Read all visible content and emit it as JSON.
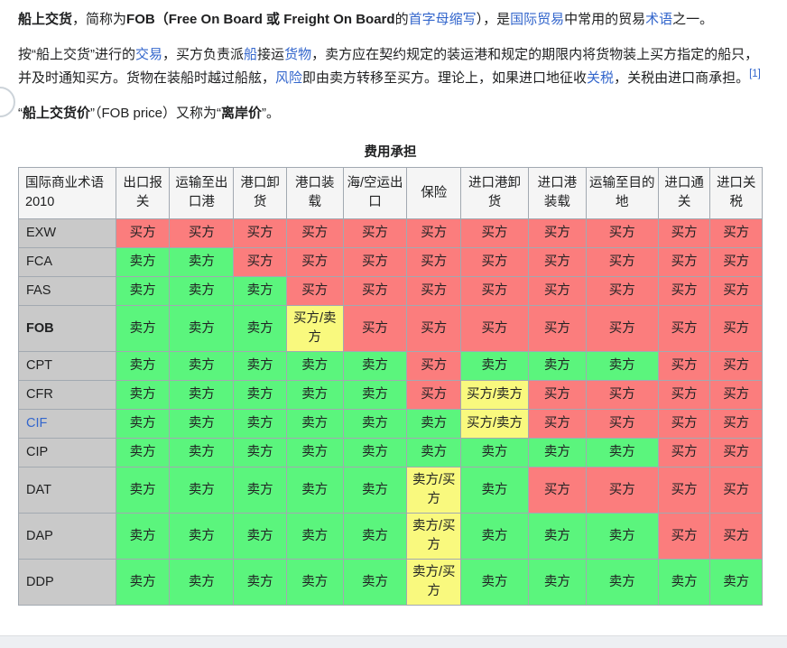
{
  "colors": {
    "buyer_bg": "#fb7d7d",
    "seller_bg": "#5bf57d",
    "shared_bg": "#f9f97e",
    "row_header_bg": "#c9c9c9",
    "column_header_bg": "#f5f5f5",
    "link": "#3366cc",
    "text": "#202122",
    "border": "#a2a9b1"
  },
  "article": {
    "paragraphs": [
      {
        "segments": [
          {
            "text": "船上交货",
            "bold": true
          },
          {
            "text": "，简称为"
          },
          {
            "text": "FOB（Free On Board 或 Freight On Board",
            "bold": true
          },
          {
            "text": "的"
          },
          {
            "text": "首字母缩写",
            "link": true
          },
          {
            "text": "），是"
          },
          {
            "text": "国际贸易",
            "link": true
          },
          {
            "text": "中常用的贸易"
          },
          {
            "text": "术语",
            "link": true
          },
          {
            "text": "之一。"
          }
        ]
      },
      {
        "segments": [
          {
            "text": "按“船上交货”进行的"
          },
          {
            "text": "交易",
            "link": true
          },
          {
            "text": "，买方负责派"
          },
          {
            "text": "船",
            "link": true
          },
          {
            "text": "接运"
          },
          {
            "text": "货物",
            "link": true
          },
          {
            "text": "，卖方应在契约规定的装运港和规定的期限内将货物装上买方指定的船只，并及时通知买方。货物在装船时越过船舷，"
          },
          {
            "text": "风险",
            "link": true
          },
          {
            "text": "即由卖方转移至买方。理论上，如果进口地征收"
          },
          {
            "text": "关税",
            "link": true
          },
          {
            "text": "，关税由进口商承担。"
          },
          {
            "text": "[1]",
            "link": true,
            "sup": true
          }
        ]
      },
      {
        "segments": [
          {
            "text": "“"
          },
          {
            "text": "船上交货价",
            "bold": true
          },
          {
            "text": "”（FOB price）又称为“"
          },
          {
            "text": "离岸价",
            "bold": true
          },
          {
            "text": "”。"
          }
        ]
      }
    ]
  },
  "table": {
    "caption": "费用承担",
    "columns": [
      "国际商业术语 2010",
      "出口报关",
      "运输至出口港",
      "港口卸货",
      "港口装载",
      "海/空运出口",
      "保险",
      "进口港卸货",
      "进口港装载",
      "运输至目的地",
      "进口通关",
      "进口关税"
    ],
    "cell_types": {
      "B": {
        "label": "买方",
        "class": "buyer"
      },
      "S": {
        "label": "卖方",
        "class": "seller"
      },
      "BS": {
        "label": "买方/卖方",
        "class": "shared"
      },
      "SB": {
        "label": "卖方/买方",
        "class": "shared"
      }
    },
    "rows": [
      {
        "label": "EXW",
        "cells": [
          "B",
          "B",
          "B",
          "B",
          "B",
          "B",
          "B",
          "B",
          "B",
          "B",
          "B"
        ]
      },
      {
        "label": "FCA",
        "cells": [
          "S",
          "S",
          "B",
          "B",
          "B",
          "B",
          "B",
          "B",
          "B",
          "B",
          "B"
        ]
      },
      {
        "label": "FAS",
        "cells": [
          "S",
          "S",
          "S",
          "B",
          "B",
          "B",
          "B",
          "B",
          "B",
          "B",
          "B"
        ]
      },
      {
        "label": "FOB",
        "bold": true,
        "cells": [
          "S",
          "S",
          "S",
          "BS",
          "B",
          "B",
          "B",
          "B",
          "B",
          "B",
          "B"
        ]
      },
      {
        "label": "CPT",
        "cells": [
          "S",
          "S",
          "S",
          "S",
          "S",
          "B",
          "S",
          "S",
          "S",
          "B",
          "B"
        ]
      },
      {
        "label": "CFR",
        "cells": [
          "S",
          "S",
          "S",
          "S",
          "S",
          "B",
          "BS",
          "B",
          "B",
          "B",
          "B"
        ]
      },
      {
        "label": "CIF",
        "link": true,
        "cells": [
          "S",
          "S",
          "S",
          "S",
          "S",
          "S",
          "BS",
          "B",
          "B",
          "B",
          "B"
        ]
      },
      {
        "label": "CIP",
        "cells": [
          "S",
          "S",
          "S",
          "S",
          "S",
          "S",
          "S",
          "S",
          "S",
          "B",
          "B"
        ]
      },
      {
        "label": "DAT",
        "cells": [
          "S",
          "S",
          "S",
          "S",
          "S",
          "SB",
          "S",
          "B",
          "B",
          "B",
          "B"
        ]
      },
      {
        "label": "DAP",
        "cells": [
          "S",
          "S",
          "S",
          "S",
          "S",
          "SB",
          "S",
          "S",
          "S",
          "B",
          "B"
        ]
      },
      {
        "label": "DDP",
        "cells": [
          "S",
          "S",
          "S",
          "S",
          "S",
          "SB",
          "S",
          "S",
          "S",
          "S",
          "S"
        ]
      }
    ]
  }
}
